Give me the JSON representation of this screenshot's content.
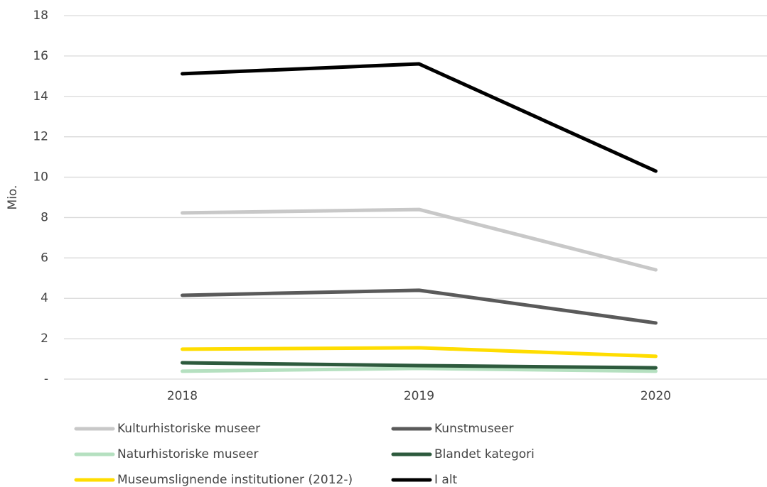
{
  "chart_data": {
    "type": "line",
    "ylabel": "Mio.",
    "categories": [
      "2018",
      "2019",
      "2020"
    ],
    "series": [
      {
        "name": "Kulturhistoriske museer",
        "color": "#c8c8c8",
        "values": [
          8.23,
          8.4,
          5.41
        ]
      },
      {
        "name": "Kunstmuseer",
        "color": "#5a5a5a",
        "values": [
          4.15,
          4.4,
          2.78
        ]
      },
      {
        "name": "Naturhistoriske museer",
        "color": "#b5e0c0",
        "values": [
          0.39,
          0.53,
          0.39
        ]
      },
      {
        "name": "Blandet kategori",
        "color": "#2d5a3d",
        "values": [
          0.81,
          0.67,
          0.56
        ]
      },
      {
        "name": "Museumslignende institutioner (2012-)",
        "color": "#ffdd00",
        "values": [
          1.48,
          1.55,
          1.13
        ]
      },
      {
        "name": "I alt",
        "color": "#000000",
        "values": [
          15.12,
          15.61,
          10.3
        ]
      }
    ],
    "ylim": [
      0,
      18
    ],
    "yticks": [
      {
        "value": 0,
        "label": "-"
      },
      2,
      4,
      6,
      8,
      10,
      12,
      14,
      16,
      18
    ],
    "grid": true,
    "legend": "bottom"
  }
}
